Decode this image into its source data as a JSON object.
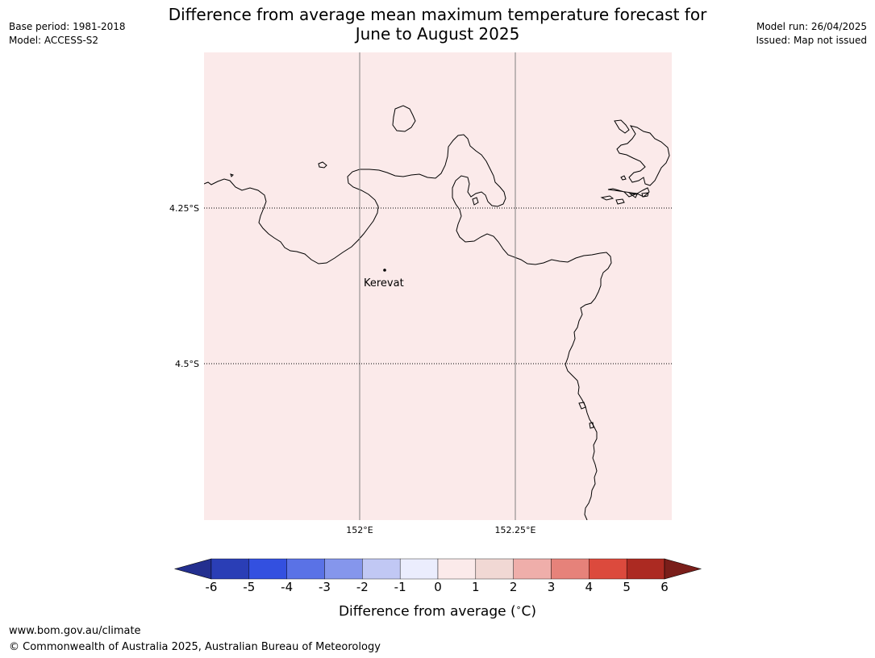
{
  "title_line1": "Difference from average mean maximum temperature forecast for",
  "title_line2": "June to August 2025",
  "meta_left": {
    "base_period": "Base period: 1981-2018",
    "model": "Model: ACCESS-S2"
  },
  "meta_right": {
    "model_run": "Model run: 26/04/2025",
    "issued": "Issued: Map not issued"
  },
  "map": {
    "fill_color": "#fbeaea",
    "coastline_color": "#000000",
    "lat_labels": [
      "4.25°S",
      "4.5°S"
    ],
    "lon_labels": [
      "152°E",
      "152.25°E"
    ],
    "place": {
      "name": "Kerevat"
    }
  },
  "colorbar": {
    "ticks": [
      "-6",
      "-5",
      "-4",
      "-3",
      "-2",
      "-1",
      "0",
      "1",
      "2",
      "3",
      "4",
      "5",
      "6"
    ],
    "colors": [
      "#232f8f",
      "#2a3eb6",
      "#3350e0",
      "#5a72e6",
      "#8596ec",
      "#c1c8f4",
      "#ebedfd",
      "#fbeaea",
      "#f1d8d4",
      "#efaeaa",
      "#e6827a",
      "#dc4a3d",
      "#ac2a22",
      "#7a1e1a"
    ],
    "label": "Difference from average (",
    "label_symbol": "∘",
    "label_unit": "C)"
  },
  "footer": {
    "url": "www.bom.gov.au/climate",
    "copyright": "© Commonwealth of Australia 2025, Australian Bureau of Meteorology"
  }
}
